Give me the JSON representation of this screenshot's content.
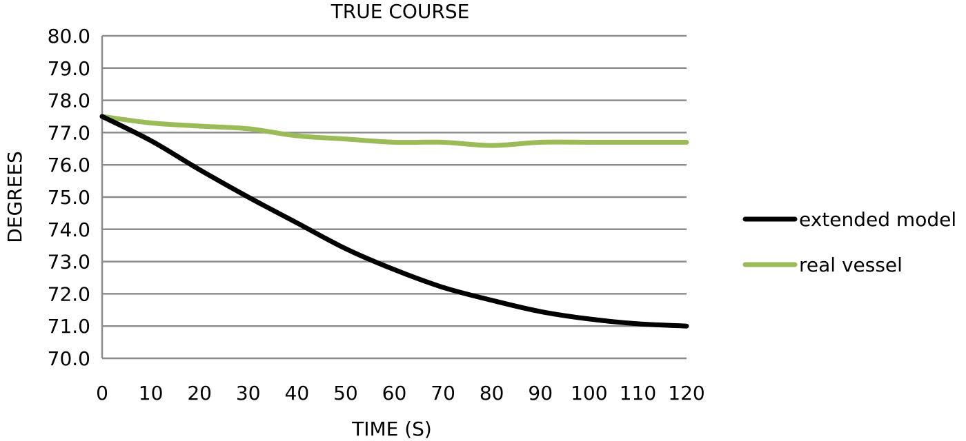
{
  "chart_data": {
    "type": "line",
    "title": "TRUE COURSE",
    "xlabel": "TIME (S)",
    "ylabel": "DEGREES",
    "x": [
      0,
      10,
      20,
      30,
      40,
      50,
      60,
      70,
      80,
      90,
      100,
      110,
      120
    ],
    "xticks": [
      "0",
      "10",
      "20",
      "30",
      "40",
      "50",
      "60",
      "70",
      "80",
      "90",
      "100",
      "110",
      "120"
    ],
    "yticks": [
      "70.0",
      "71.0",
      "72.0",
      "73.0",
      "74.0",
      "75.0",
      "76.0",
      "77.0",
      "78.0",
      "79.0",
      "80.0"
    ],
    "xlim": [
      0,
      120
    ],
    "ylim": [
      70,
      80
    ],
    "grid": "horizontal",
    "legend_position": "right",
    "series": [
      {
        "name": "extended model",
        "color": "#000000",
        "values": [
          77.5,
          76.75,
          75.85,
          75.0,
          74.2,
          73.4,
          72.75,
          72.2,
          71.8,
          71.45,
          71.22,
          71.07,
          71.0
        ]
      },
      {
        "name": "real vessel",
        "color": "#9BBB59",
        "values": [
          77.5,
          77.3,
          77.2,
          77.12,
          76.9,
          76.8,
          76.7,
          76.7,
          76.6,
          76.7,
          76.7,
          76.7,
          76.7
        ]
      }
    ]
  },
  "colors": {
    "grid": "#8c8c8c",
    "axis": "#8c8c8c",
    "text": "#000000"
  }
}
